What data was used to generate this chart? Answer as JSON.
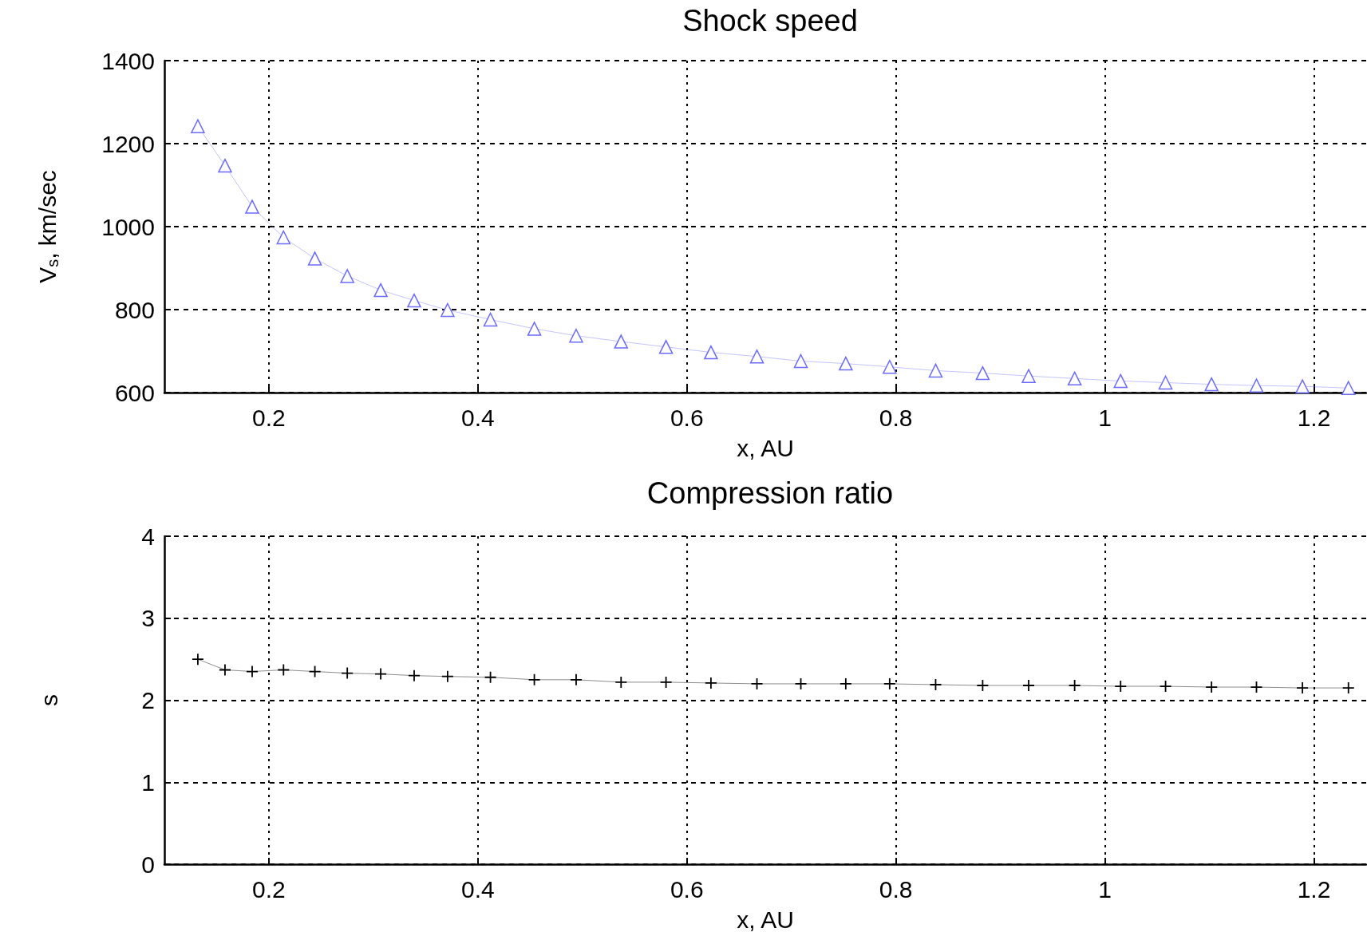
{
  "chart_data": [
    {
      "type": "line",
      "title": "Shock speed",
      "xlabel": "x, AU",
      "ylabel": "V$_{s}$, km/sec",
      "x": [
        0.132,
        0.158,
        0.184,
        0.214,
        0.244,
        0.275,
        0.307,
        0.339,
        0.371,
        0.412,
        0.454,
        0.494,
        0.537,
        0.58,
        0.623,
        0.667,
        0.709,
        0.752,
        0.794,
        0.838,
        0.883,
        0.927,
        0.971,
        1.015,
        1.058,
        1.102,
        1.145,
        1.189,
        1.233
      ],
      "series": [
        {
          "color": "#6b6bff",
          "values": [
            1242,
            1147,
            1048,
            974,
            923,
            881,
            847,
            822,
            799,
            776,
            754,
            737,
            723,
            710,
            697,
            687,
            676,
            670,
            662,
            653,
            647,
            640,
            634,
            628,
            624,
            620,
            617,
            615,
            611
          ]
        }
      ],
      "xlim": [
        0.1,
        1.25
      ],
      "xticks": [
        0.2,
        0.4,
        0.6,
        0.8,
        1,
        1.2
      ],
      "ylim": [
        600,
        1400
      ],
      "yticks": [
        600,
        800,
        1000,
        1200,
        1400
      ],
      "grid": true,
      "marker": "triangle",
      "line_style": "dotted"
    },
    {
      "type": "line",
      "title": "Compression ratio",
      "xlabel": "x, AU",
      "ylabel": "s",
      "x": [
        0.132,
        0.158,
        0.184,
        0.214,
        0.244,
        0.275,
        0.307,
        0.339,
        0.371,
        0.412,
        0.454,
        0.494,
        0.537,
        0.58,
        0.623,
        0.667,
        0.709,
        0.752,
        0.794,
        0.838,
        0.883,
        0.927,
        0.971,
        1.015,
        1.058,
        1.102,
        1.145,
        1.189,
        1.233
      ],
      "series": [
        {
          "color": "#000000",
          "values": [
            2.5,
            2.37,
            2.35,
            2.37,
            2.35,
            2.33,
            2.32,
            2.3,
            2.29,
            2.28,
            2.25,
            2.25,
            2.22,
            2.22,
            2.21,
            2.2,
            2.2,
            2.2,
            2.2,
            2.19,
            2.18,
            2.18,
            2.18,
            2.17,
            2.17,
            2.16,
            2.16,
            2.15,
            2.15
          ]
        }
      ],
      "xlim": [
        0.1,
        1.25
      ],
      "xticks": [
        0.2,
        0.4,
        0.6,
        0.8,
        1,
        1.2
      ],
      "ylim": [
        0,
        4
      ],
      "yticks": [
        0,
        1,
        2,
        3,
        4
      ],
      "grid": true,
      "marker": "cross",
      "line_style": "solid"
    }
  ]
}
